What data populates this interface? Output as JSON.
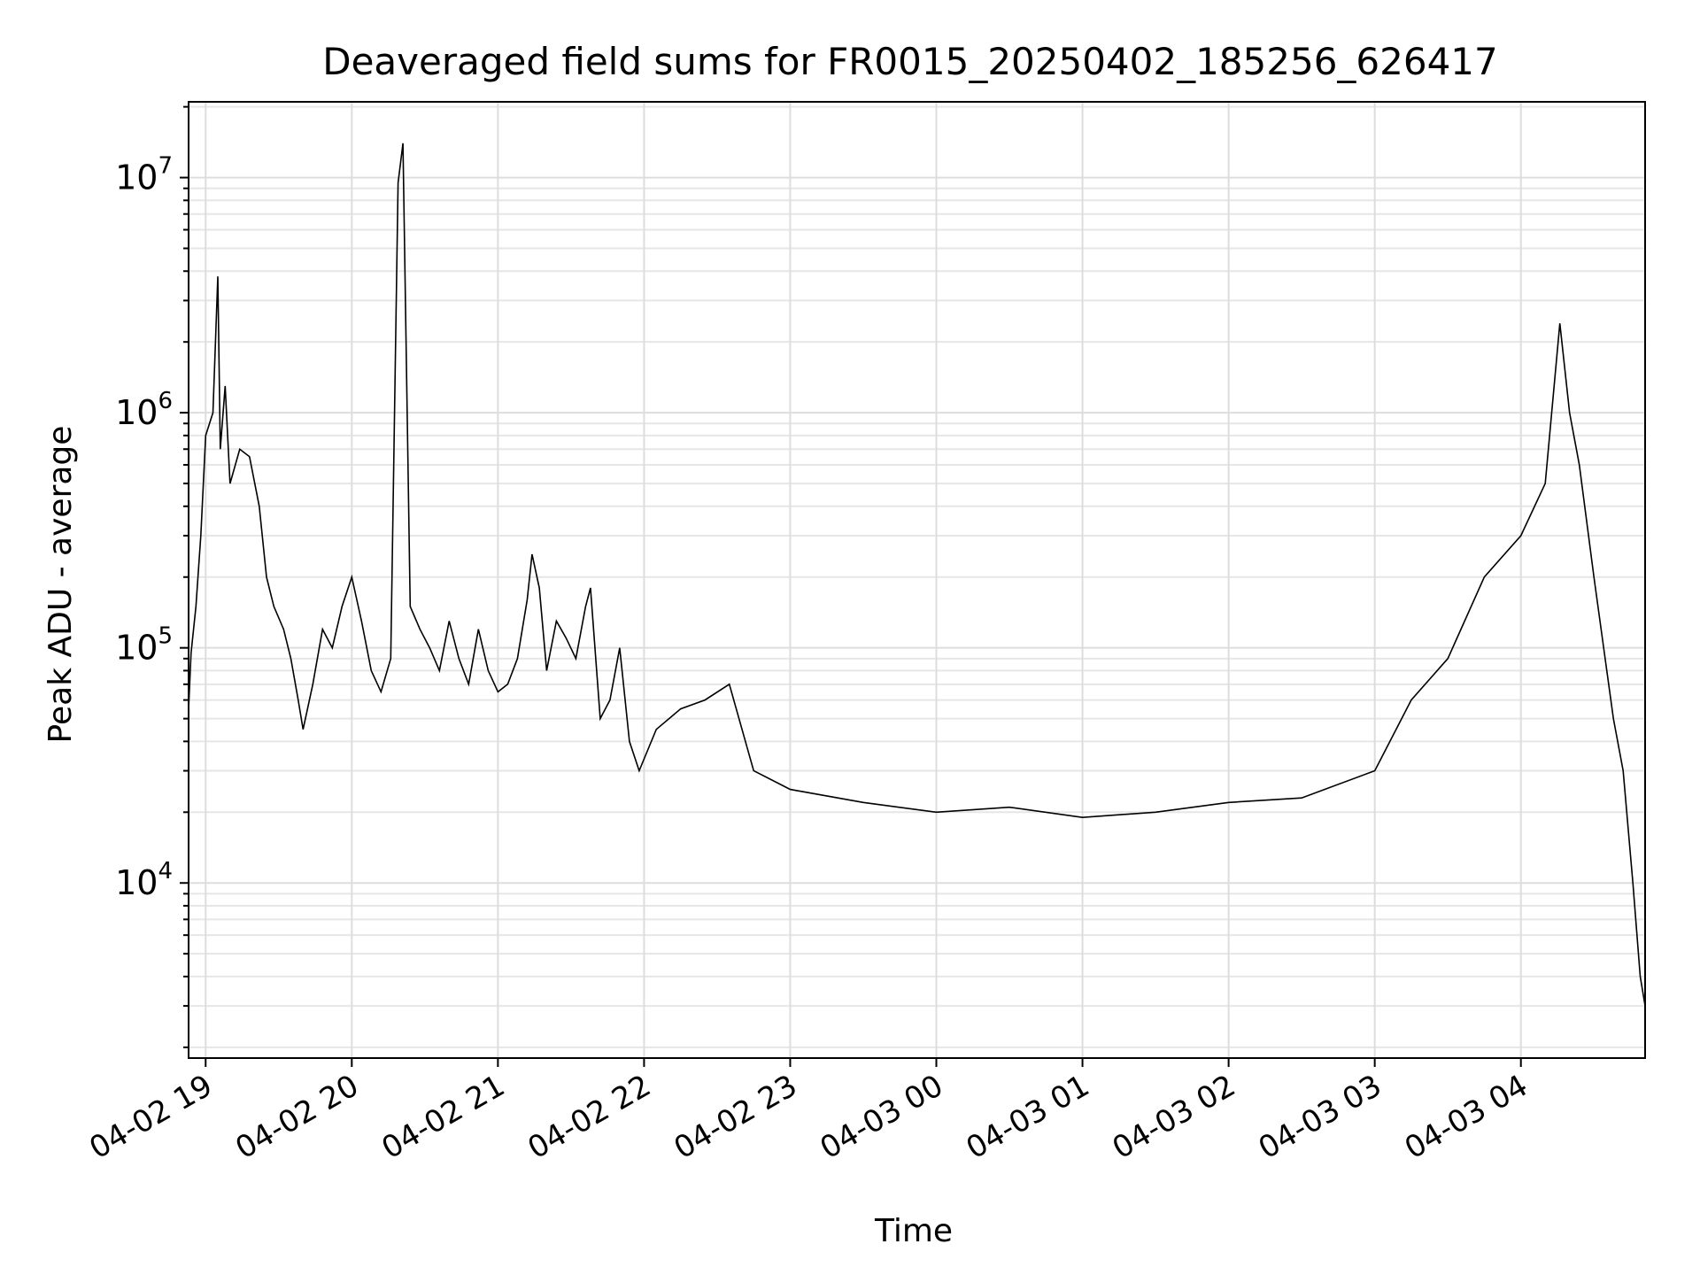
{
  "chart_data": {
    "type": "line",
    "title": "Deaveraged field sums for FR0015_20250402_185256_626417",
    "xlabel": "Time",
    "ylabel": "Peak ADU - average",
    "x_scale": "time",
    "y_scale": "log",
    "xlim": [
      "2025-04-02 18:53",
      "2025-04-03 04:51"
    ],
    "ylim": [
      1800,
      21000000
    ],
    "grid": true,
    "legend": "none",
    "x_ticks": [
      {
        "time": "2025-04-02 19:00",
        "label": "04-02 19"
      },
      {
        "time": "2025-04-02 20:00",
        "label": "04-02 20"
      },
      {
        "time": "2025-04-02 21:00",
        "label": "04-02 21"
      },
      {
        "time": "2025-04-02 22:00",
        "label": "04-02 22"
      },
      {
        "time": "2025-04-02 23:00",
        "label": "04-02 23"
      },
      {
        "time": "2025-04-03 00:00",
        "label": "04-03 00"
      },
      {
        "time": "2025-04-03 01:00",
        "label": "04-03 01"
      },
      {
        "time": "2025-04-03 02:00",
        "label": "04-03 02"
      },
      {
        "time": "2025-04-03 03:00",
        "label": "04-03 03"
      },
      {
        "time": "2025-04-03 04:00",
        "label": "04-03 04"
      }
    ],
    "y_ticks": [
      {
        "value": 10000,
        "base": "10",
        "exp": "4"
      },
      {
        "value": 100000,
        "base": "10",
        "exp": "5"
      },
      {
        "value": 1000000,
        "base": "10",
        "exp": "6"
      },
      {
        "value": 10000000,
        "base": "10",
        "exp": "7"
      }
    ],
    "series": [
      {
        "color": "#000000",
        "points": [
          [
            "2025-04-02 18:53",
            55000
          ],
          [
            "2025-04-02 18:54",
            95000
          ],
          [
            "2025-04-02 18:56",
            150000
          ],
          [
            "2025-04-02 18:58",
            300000
          ],
          [
            "2025-04-02 19:00",
            800000
          ],
          [
            "2025-04-02 19:03",
            1000000
          ],
          [
            "2025-04-02 19:05",
            3800000
          ],
          [
            "2025-04-02 19:06",
            700000
          ],
          [
            "2025-04-02 19:08",
            1300000
          ],
          [
            "2025-04-02 19:10",
            500000
          ],
          [
            "2025-04-02 19:14",
            700000
          ],
          [
            "2025-04-02 19:18",
            650000
          ],
          [
            "2025-04-02 19:22",
            400000
          ],
          [
            "2025-04-02 19:25",
            200000
          ],
          [
            "2025-04-02 19:28",
            150000
          ],
          [
            "2025-04-02 19:32",
            120000
          ],
          [
            "2025-04-02 19:35",
            90000
          ],
          [
            "2025-04-02 19:38",
            60000
          ],
          [
            "2025-04-02 19:40",
            45000
          ],
          [
            "2025-04-02 19:44",
            70000
          ],
          [
            "2025-04-02 19:48",
            120000
          ],
          [
            "2025-04-02 19:52",
            100000
          ],
          [
            "2025-04-02 19:56",
            150000
          ],
          [
            "2025-04-02 20:00",
            200000
          ],
          [
            "2025-04-02 20:04",
            130000
          ],
          [
            "2025-04-02 20:08",
            80000
          ],
          [
            "2025-04-02 20:12",
            65000
          ],
          [
            "2025-04-02 20:16",
            90000
          ],
          [
            "2025-04-02 20:19",
            9500000
          ],
          [
            "2025-04-02 20:21",
            14000000
          ],
          [
            "2025-04-02 20:24",
            150000
          ],
          [
            "2025-04-02 20:28",
            120000
          ],
          [
            "2025-04-02 20:32",
            100000
          ],
          [
            "2025-04-02 20:36",
            80000
          ],
          [
            "2025-04-02 20:40",
            130000
          ],
          [
            "2025-04-02 20:44",
            90000
          ],
          [
            "2025-04-02 20:48",
            70000
          ],
          [
            "2025-04-02 20:52",
            120000
          ],
          [
            "2025-04-02 20:56",
            80000
          ],
          [
            "2025-04-02 21:00",
            65000
          ],
          [
            "2025-04-02 21:04",
            70000
          ],
          [
            "2025-04-02 21:08",
            90000
          ],
          [
            "2025-04-02 21:12",
            160000
          ],
          [
            "2025-04-02 21:14",
            250000
          ],
          [
            "2025-04-02 21:17",
            180000
          ],
          [
            "2025-04-02 21:20",
            80000
          ],
          [
            "2025-04-02 21:24",
            130000
          ],
          [
            "2025-04-02 21:28",
            110000
          ],
          [
            "2025-04-02 21:32",
            90000
          ],
          [
            "2025-04-02 21:36",
            150000
          ],
          [
            "2025-04-02 21:38",
            180000
          ],
          [
            "2025-04-02 21:42",
            50000
          ],
          [
            "2025-04-02 21:46",
            60000
          ],
          [
            "2025-04-02 21:50",
            100000
          ],
          [
            "2025-04-02 21:54",
            40000
          ],
          [
            "2025-04-02 21:58",
            30000
          ],
          [
            "2025-04-02 22:05",
            45000
          ],
          [
            "2025-04-02 22:15",
            55000
          ],
          [
            "2025-04-02 22:25",
            60000
          ],
          [
            "2025-04-02 22:35",
            70000
          ],
          [
            "2025-04-02 22:45",
            30000
          ],
          [
            "2025-04-02 23:00",
            25000
          ],
          [
            "2025-04-02 23:30",
            22000
          ],
          [
            "2025-04-03 00:00",
            20000
          ],
          [
            "2025-04-03 00:30",
            21000
          ],
          [
            "2025-04-03 01:00",
            19000
          ],
          [
            "2025-04-03 01:30",
            20000
          ],
          [
            "2025-04-03 02:00",
            22000
          ],
          [
            "2025-04-03 02:30",
            23000
          ],
          [
            "2025-04-03 03:00",
            30000
          ],
          [
            "2025-04-03 03:15",
            60000
          ],
          [
            "2025-04-03 03:30",
            90000
          ],
          [
            "2025-04-03 03:45",
            200000
          ],
          [
            "2025-04-03 04:00",
            300000
          ],
          [
            "2025-04-03 04:10",
            500000
          ],
          [
            "2025-04-03 04:16",
            2400000
          ],
          [
            "2025-04-03 04:20",
            1000000
          ],
          [
            "2025-04-03 04:24",
            600000
          ],
          [
            "2025-04-03 04:30",
            200000
          ],
          [
            "2025-04-03 04:34",
            100000
          ],
          [
            "2025-04-03 04:38",
            50000
          ],
          [
            "2025-04-03 04:42",
            30000
          ],
          [
            "2025-04-03 04:46",
            10000
          ],
          [
            "2025-04-03 04:49",
            4000
          ],
          [
            "2025-04-03 04:51",
            3000
          ]
        ]
      }
    ]
  }
}
